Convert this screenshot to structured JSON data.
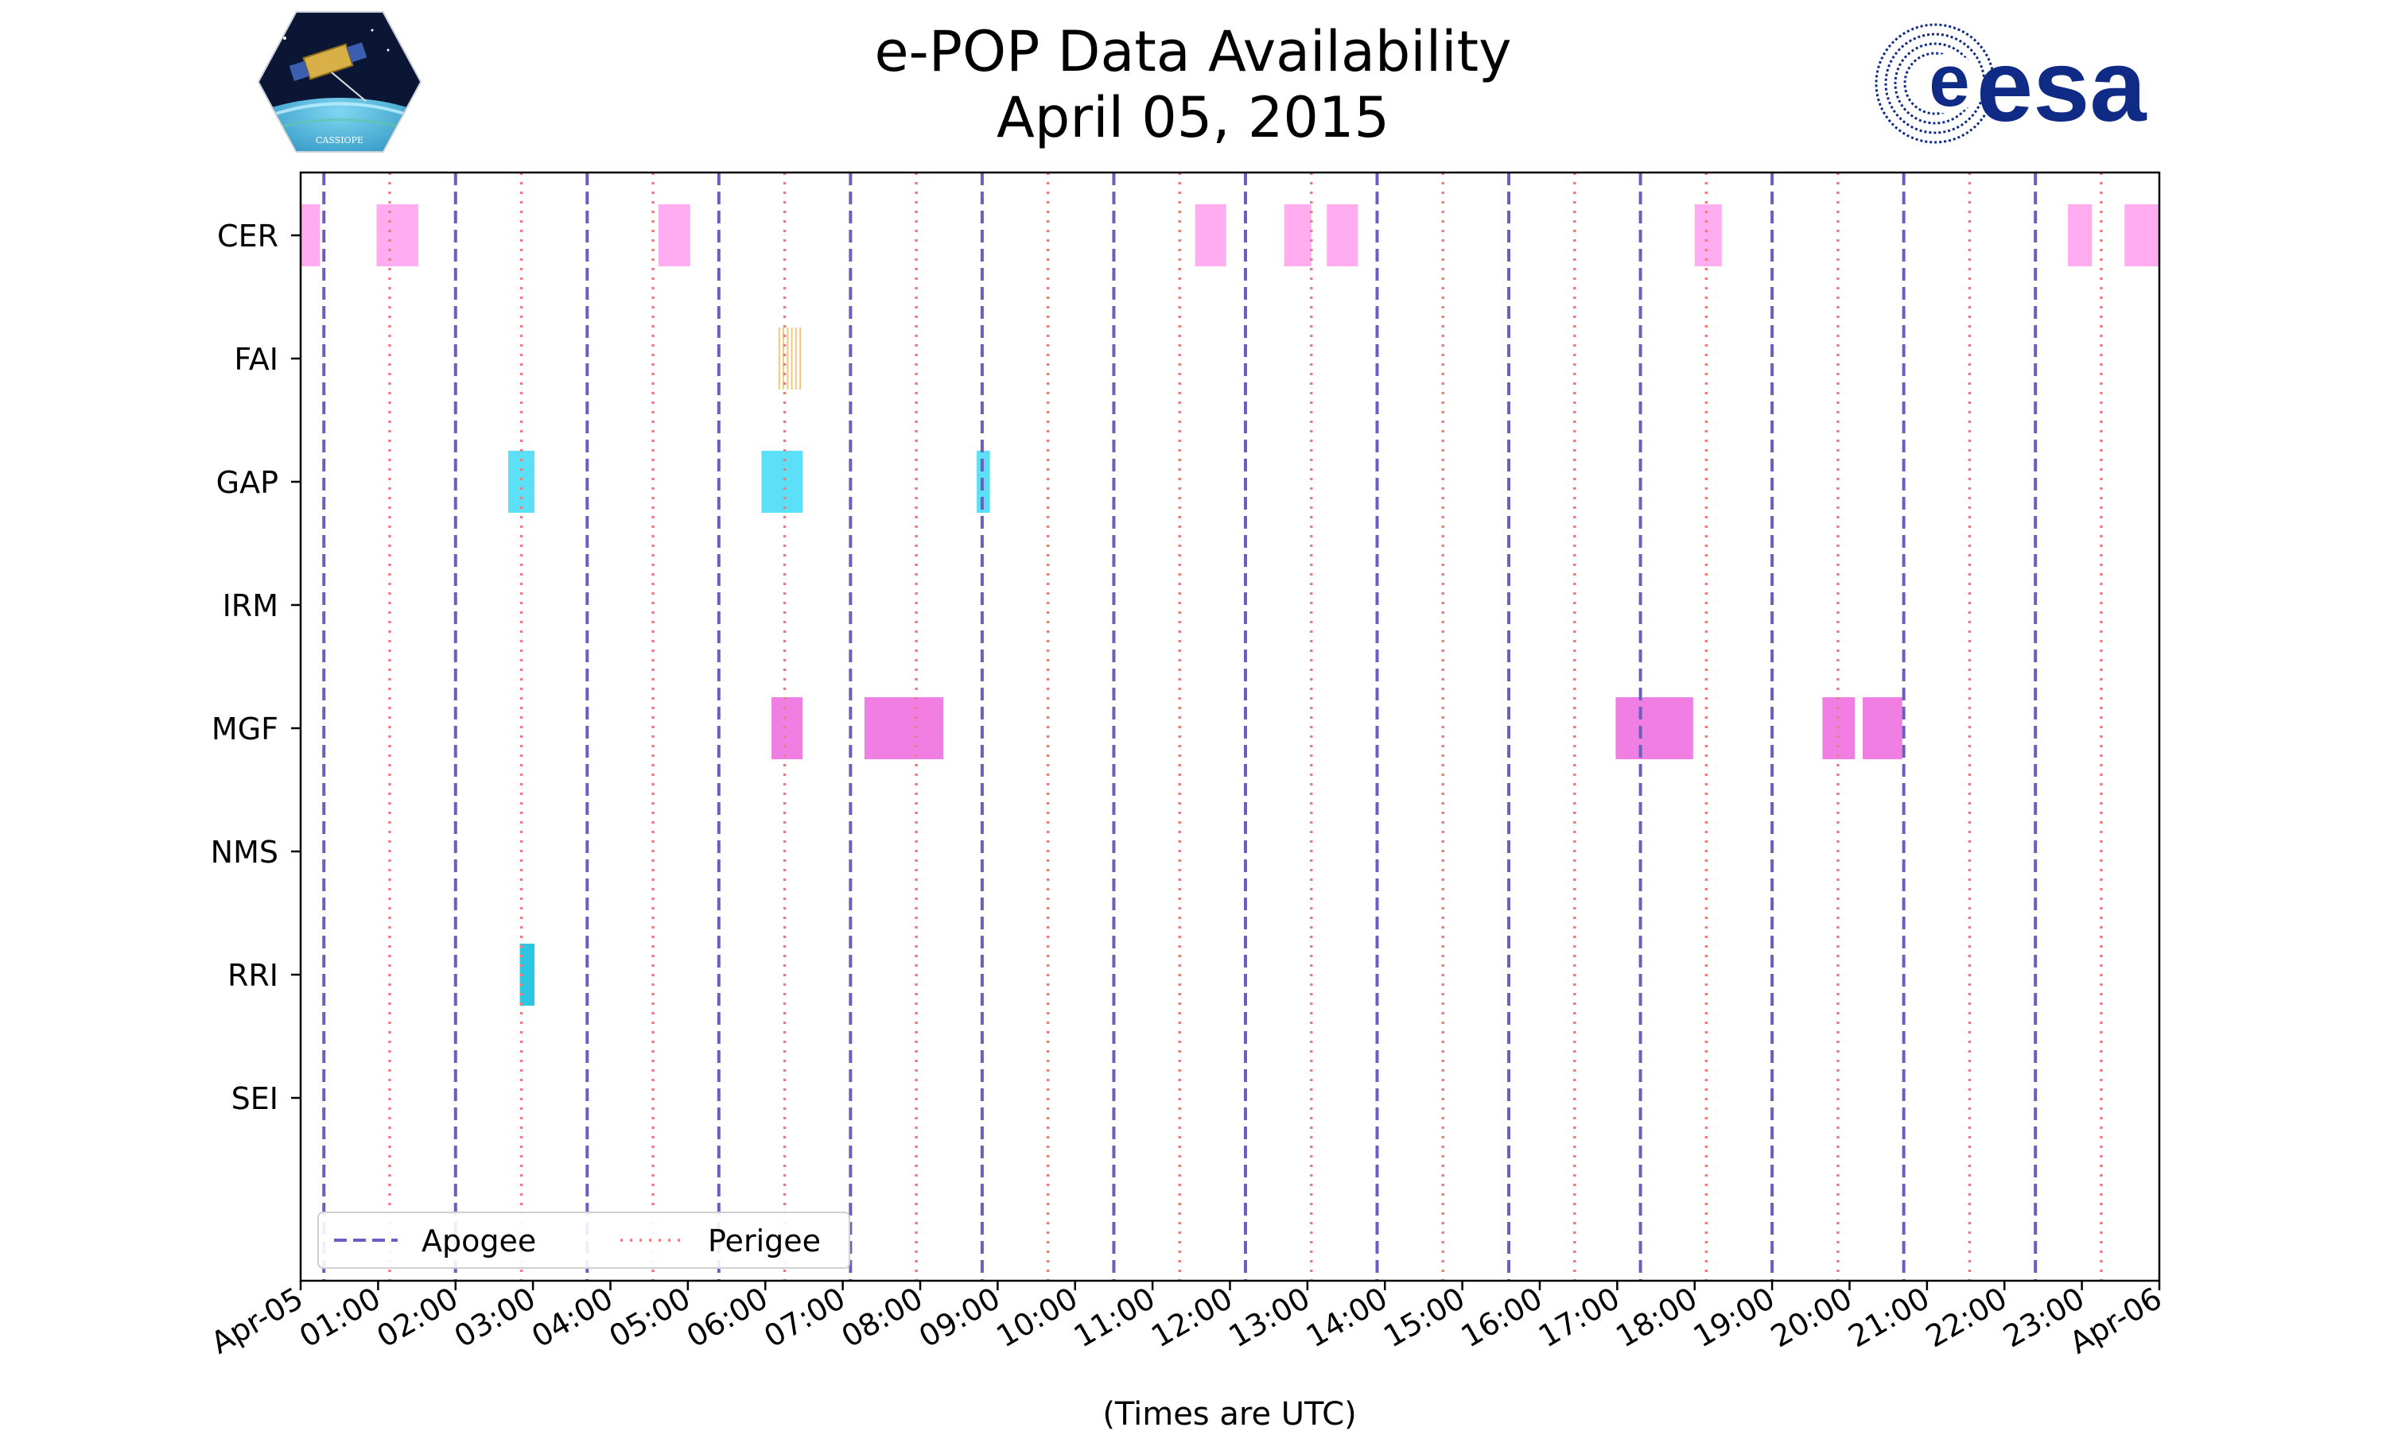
{
  "header": {
    "title_line1": "e-POP Data Availability",
    "title_line2": "April 05, 2015",
    "logo_left_text": "CASSIOPE",
    "logo_right_text": "esa"
  },
  "colors": {
    "apogee": "#6a5fbf",
    "perigee": "#f07a7a",
    "CER": "#ffadf0",
    "FAI": "#f6c77a",
    "GAP": "#5ce0f7",
    "MGF": "#f07ee3",
    "RRI": "#2cc6e0",
    "esa_blue": "#0f2b85"
  },
  "chart_data": {
    "type": "timeline",
    "title": "e-POP Data Availability\nApril 05, 2015",
    "xlabel": "(Times are UTC)",
    "ylabel": "",
    "xlim_hours": [
      0,
      24
    ],
    "x_tick_labels": [
      "Apr-05",
      "01:00",
      "02:00",
      "03:00",
      "04:00",
      "05:00",
      "06:00",
      "07:00",
      "08:00",
      "09:00",
      "10:00",
      "11:00",
      "12:00",
      "13:00",
      "14:00",
      "15:00",
      "16:00",
      "17:00",
      "18:00",
      "19:00",
      "20:00",
      "21:00",
      "22:00",
      "23:00",
      "Apr-06"
    ],
    "instruments": [
      "CER",
      "FAI",
      "GAP",
      "IRM",
      "MGF",
      "NMS",
      "RRI",
      "SEI"
    ],
    "apogee_hours": [
      0.3,
      2.0,
      3.7,
      5.4,
      7.1,
      8.8,
      10.5,
      12.2,
      13.9,
      15.6,
      17.3,
      19.0,
      20.7,
      22.4
    ],
    "perigee_hours": [
      1.15,
      2.85,
      4.55,
      6.25,
      7.95,
      9.65,
      11.35,
      13.05,
      14.75,
      16.45,
      18.15,
      19.85,
      21.55,
      23.25
    ],
    "segments": {
      "CER": [
        [
          0.0,
          0.25
        ],
        [
          0.98,
          1.52
        ],
        [
          4.62,
          5.03
        ],
        [
          11.55,
          11.95
        ],
        [
          12.7,
          13.05
        ],
        [
          13.25,
          13.65
        ],
        [
          18.0,
          18.35
        ],
        [
          22.82,
          23.13
        ],
        [
          23.55,
          24.0
        ]
      ],
      "FAI": [
        [
          6.18,
          6.45
        ]
      ],
      "GAP": [
        [
          2.68,
          3.02
        ],
        [
          5.95,
          6.48
        ],
        [
          8.73,
          8.9
        ]
      ],
      "IRM": [],
      "MGF": [
        [
          6.08,
          6.48
        ],
        [
          7.28,
          8.3
        ],
        [
          16.98,
          17.98
        ],
        [
          19.65,
          20.07
        ],
        [
          20.17,
          20.68
        ]
      ],
      "NMS": [],
      "RRI": [
        [
          2.83,
          3.02
        ]
      ],
      "SEI": []
    },
    "legend": {
      "location": "lower-left",
      "entries": [
        {
          "label": "Apogee",
          "style": "dashed"
        },
        {
          "label": "Perigee",
          "style": "dotted"
        }
      ]
    },
    "grid": false
  }
}
